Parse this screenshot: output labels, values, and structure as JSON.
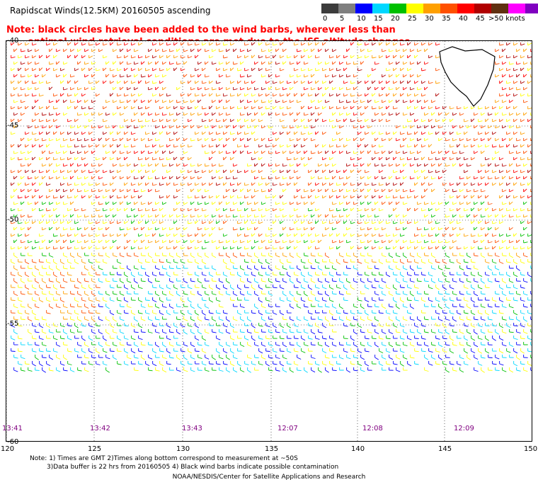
{
  "title": "Rapidscat Winds(12.5KM) 20160505 ascending",
  "note": {
    "line1": "Note: black circles have been added to the wind barbs, wherever less than",
    "line2": "optimal wind retrieval conditions are met due to the ISS altitude changes"
  },
  "colorbar": {
    "colors": [
      "#3c3c3c",
      "#7f7f7f",
      "#0000ff",
      "#00d7ff",
      "#00c000",
      "#ffff00",
      "#ffa000",
      "#ff5000",
      "#ff0000",
      "#b00000",
      "#603010",
      "#ff00ff",
      "#8000c0",
      "#3000a0"
    ],
    "labels": [
      "0",
      "5",
      "10",
      "15",
      "20",
      "25",
      "30",
      "35",
      "40",
      "45",
      ">50 knots"
    ]
  },
  "map": {
    "lat_labels": [
      "-40",
      "-45",
      "-50",
      "-55",
      "-60"
    ],
    "lon_labels": [
      "120",
      "125",
      "130",
      "135",
      "140",
      "145",
      "150"
    ],
    "time_labels": [
      "13:41",
      "13:42",
      "13:43",
      "12:07",
      "12:08",
      "12:09"
    ]
  },
  "footer": {
    "line1": "Note: 1) Times are GMT 2)Times along bottom correspond to measurement at ~50S",
    "line2": "3)Data buffer is 22 hrs from 20160505 4) Black wind barbs indicate possible contamination",
    "line3": "NOAA/NESDIS/Center for Satellite Applications and Research"
  }
}
